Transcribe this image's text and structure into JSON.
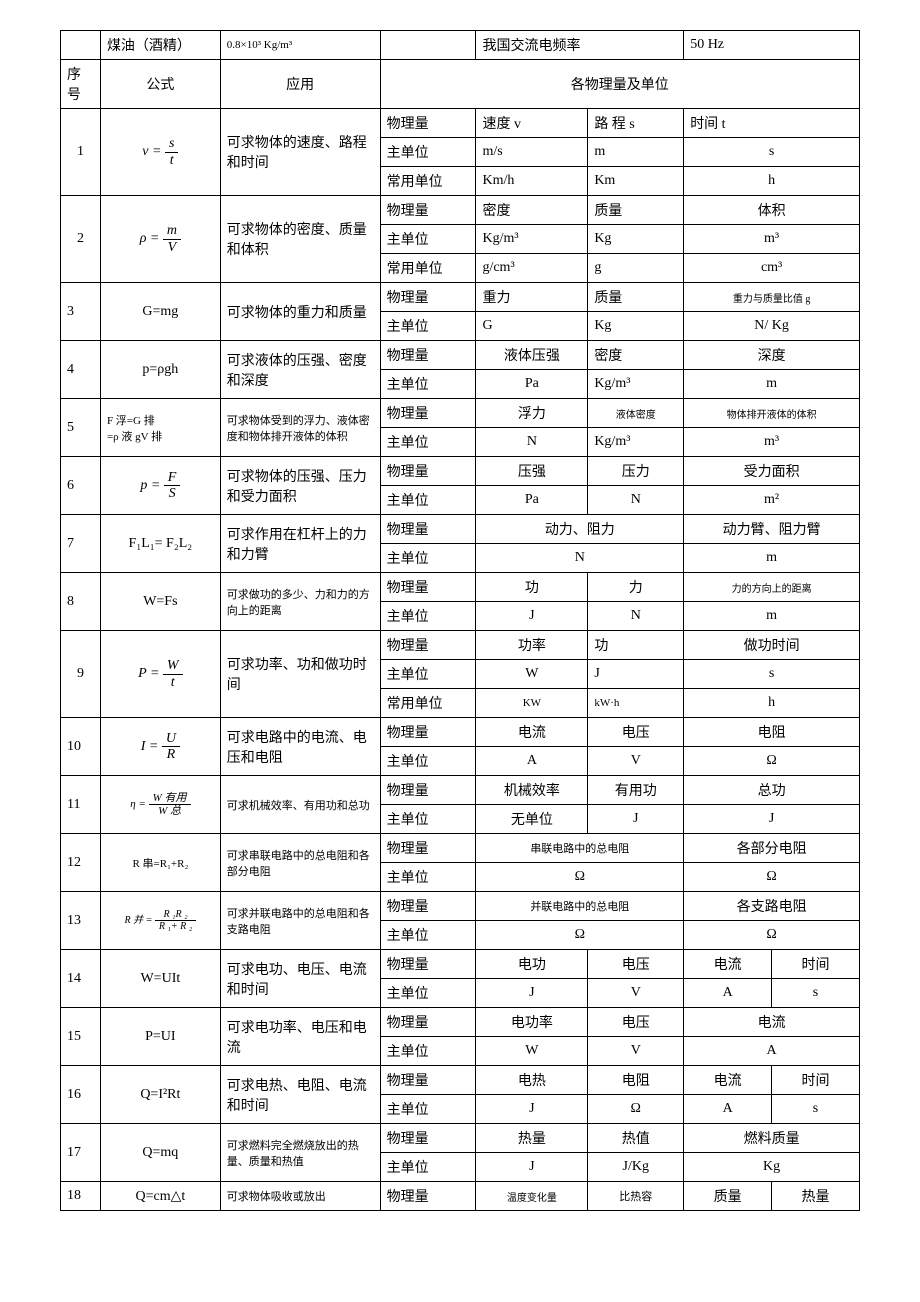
{
  "topRow": {
    "kerosene": "煤油（酒精）",
    "keroseneVal": "0.8×10³ Kg/m³",
    "freqLabel": "我国交流电频率",
    "freqVal": "50 Hz"
  },
  "header": {
    "seq": "序号",
    "formula": "公式",
    "app": "应用",
    "qty": "各物理量及单位"
  },
  "labels": {
    "phys": "物理量",
    "mainUnit": "主单位",
    "commonUnit": "常用单位"
  },
  "r1": {
    "seq": "1",
    "fEq": "v =",
    "fNum": "s",
    "fDen": "t",
    "app": "可求物体的速度、路程和时间",
    "q1": "速度 v",
    "q2": "路 程 s",
    "q3": "时间 t",
    "u1": "m/s",
    "u2": "m",
    "u3": "s",
    "cu1": "Km/h",
    "cu2": "Km",
    "cu3": "h"
  },
  "r2": {
    "seq": "2",
    "fEq": "ρ =",
    "fNum": "m",
    "fDen": "V",
    "app": "可求物体的密度、质量和体积",
    "q1": "密度",
    "q2": "质量",
    "q3": "体积",
    "u1": "Kg/m³",
    "u2": "Kg",
    "u3": "m³",
    "cu1": "g/cm³",
    "cu2": "g",
    "cu3": "cm³"
  },
  "r3": {
    "seq": "3",
    "f": "G=mg",
    "app": "可求物体的重力和质量",
    "q1": "重力",
    "q2": "质量",
    "q3": "重力与质量比值 g",
    "u1": "G",
    "u2": "Kg",
    "u3": "N/ Kg"
  },
  "r4": {
    "seq": "4",
    "f": "p=ρgh",
    "app": "可求液体的压强、密度和深度",
    "q1": "液体压强",
    "q2": "密度",
    "q3": "深度",
    "u1": "Pa",
    "u2": "Kg/m³",
    "u3": "m"
  },
  "r5": {
    "seq": "5",
    "fL1": "F 浮=G 排",
    "fL2": "=ρ 液 gV 排",
    "app": "可求物体受到的浮力、液体密度和物体排开液体的体积",
    "q1": "浮力",
    "q2": "液体密度",
    "q3": "物体排开液体的体积",
    "u1": "N",
    "u2": "Kg/m³",
    "u3": "m³"
  },
  "r6": {
    "seq": "6",
    "fEq": "p =",
    "fNum": "F",
    "fDen": "S",
    "app": "可求物体的压强、压力和受力面积",
    "q1": "压强",
    "q2": "压力",
    "q3": "受力面积",
    "u1": "Pa",
    "u2": "N",
    "u3": "m²"
  },
  "r7": {
    "seq": "7",
    "f": "F₁L₁= F₂L₂",
    "app": "可求作用在杠杆上的力和力臂",
    "q1": "动力、阻力",
    "q3": "动力臂、阻力臂",
    "u1": "N",
    "u3": "m"
  },
  "r8": {
    "seq": "8",
    "f": "W=Fs",
    "app": "可求做功的多少、力和力的方向上的距离",
    "q1": "功",
    "q2": "力",
    "q3": "力的方向上的距离",
    "u1": "J",
    "u2": "N",
    "u3": "m"
  },
  "r9": {
    "seq": "9",
    "fEq": "P  =",
    "fNum": "W",
    "fDen": "t",
    "app": "可求功率、功和做功时间",
    "q1": "功率",
    "q2": "功",
    "q3": "做功时间",
    "u1": "W",
    "u2": "J",
    "u3": "s",
    "cu1": "KW",
    "cu2": "kW·h",
    "cu3": "h"
  },
  "r10": {
    "seq": "10",
    "fEq": "I =",
    "fNum": "U",
    "fDen": "R",
    "app": "可求电路中的电流、电压和电阻",
    "q1": "电流",
    "q2": "电压",
    "q3": "电阻",
    "u1": "A",
    "u2": "V",
    "u3": "Ω"
  },
  "r11": {
    "seq": "11",
    "fEq": "η =",
    "fNum": "W 有用",
    "fDen": "W 总",
    "app": "可求机械效率、有用功和总功",
    "q1": "机械效率",
    "q2": "有用功",
    "q3": "总功",
    "u1": "无单位",
    "u2": "J",
    "u3": "J"
  },
  "r12": {
    "seq": "12",
    "f": "R 串=R₁+R₂",
    "app": "可求串联电路中的总电阻和各部分电阻",
    "q1": "串联电路中的总电阻",
    "q3": "各部分电阻",
    "u1": "Ω",
    "u3": "Ω"
  },
  "r13": {
    "seq": "13",
    "fEq": "R 并 =",
    "fNum": "R ₁R ₂",
    "fDen": "R ₁+ R ₂",
    "app": "可求并联电路中的总电阻和各支路电阻",
    "q1": "并联电路中的总电阻",
    "q3": "各支路电阻",
    "u1": "Ω",
    "u3": "Ω"
  },
  "r14": {
    "seq": "14",
    "f": "W=UIt",
    "app": "可求电功、电压、电流和时间",
    "q1": "电功",
    "q2": "电压",
    "q3": "电流",
    "q4": "时间",
    "u1": "J",
    "u2": "V",
    "u3": "A",
    "u4": "s"
  },
  "r15": {
    "seq": "15",
    "f": "P=UI",
    "app": "可求电功率、电压和电流",
    "q1": "电功率",
    "q2": "电压",
    "q3": "电流",
    "u1": "W",
    "u2": "V",
    "u3": "A"
  },
  "r16": {
    "seq": "16",
    "f": "Q=I²Rt",
    "app": "可求电热、电阻、电流和时间",
    "q1": "电热",
    "q2": "电阻",
    "q3": "电流",
    "q4": "时间",
    "u1": "J",
    "u2": "Ω",
    "u3": "A",
    "u4": "s"
  },
  "r17": {
    "seq": "17",
    "f": "Q=mq",
    "app": "可求燃料完全燃烧放出的热量、质量和热值",
    "q1": "热量",
    "q2": "热值",
    "q3": "燃料质量",
    "u1": "J",
    "u2": "J/Kg",
    "u3": "Kg"
  },
  "r18": {
    "seq": "18",
    "f": "Q=cm△t",
    "app": "可求物体吸收或放出",
    "q1": "温度变化量",
    "q2": "比热容",
    "q3": "质量",
    "q4": "热量"
  },
  "style": {
    "background_color": "#ffffff",
    "border_color": "#000000",
    "text_color": "#000000",
    "font_family": "SimSun",
    "base_fontsize": 14,
    "small_fontsize": 11,
    "tiny_fontsize": 10,
    "col_widths_pct": [
      5,
      15,
      20,
      12,
      14,
      12,
      11,
      11
    ]
  }
}
